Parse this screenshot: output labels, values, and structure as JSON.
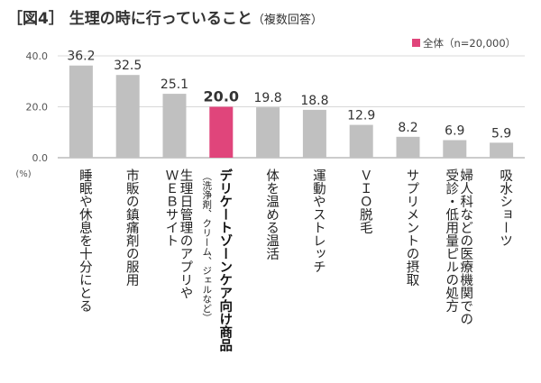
{
  "title": "［図4］ 生理の時に行っていること",
  "title_sub": "（複数回答）",
  "chart_data": {
    "type": "bar",
    "title": "［図4］ 生理の時に行っていること（複数回答）",
    "ylabel": "(%)",
    "ylim": [
      0,
      40
    ],
    "yticks": [
      "0.0",
      "20.0",
      "40.0"
    ],
    "grid": true,
    "legend": {
      "placement": "top-right",
      "label": "全体（n=20,000）"
    },
    "colors": {
      "bar": "#c0c0c0",
      "highlight": "#e0457b"
    },
    "highlight_index": 3,
    "categories": [
      [
        "睡眠や休息を十分にとる"
      ],
      [
        "市販の鎮痛剤の服用"
      ],
      [
        "生理日管理のアプリや",
        "ＷＥＢサイト"
      ],
      [
        "デリケートゾーンケア向け商品"
      ],
      [
        "体を温める温活"
      ],
      [
        "運動やストレッチ"
      ],
      [
        "ＶＩＯ脱毛"
      ],
      [
        "サプリメントの摂取"
      ],
      [
        "婦人科などの医療機関での",
        "受診・低用量ピルの処方"
      ],
      [
        "吸水ショーツ"
      ]
    ],
    "category_notes": [
      "",
      "",
      "",
      "（洗浄剤、クリーム、ジェルなど）",
      "",
      "",
      "",
      "",
      "",
      ""
    ],
    "values": [
      36.2,
      32.5,
      25.1,
      20.0,
      19.8,
      18.8,
      12.9,
      8.2,
      6.9,
      5.9
    ],
    "value_labels": [
      "36.2",
      "32.5",
      "25.1",
      "20.0",
      "19.8",
      "18.8",
      "12.9",
      "8.2",
      "6.9",
      "5.9"
    ]
  }
}
